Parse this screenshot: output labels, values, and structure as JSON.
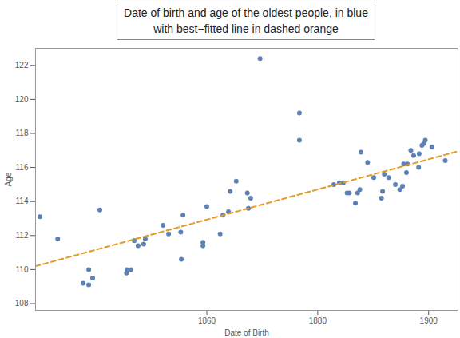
{
  "chart_data": {
    "type": "scatter",
    "title": "Date of birth and age of the oldest people, in blue\nwith best−fitted line in dashed orange",
    "x_label": "Date of Birth",
    "y_label": "Age",
    "xlim": [
      1829.1,
      1905.3
    ],
    "ylim": [
      107.6,
      123.0
    ],
    "xticks": [
      1860,
      1880,
      1900
    ],
    "yticks": [
      108,
      110,
      112,
      114,
      116,
      118,
      120,
      122
    ],
    "grid": false,
    "series": [
      {
        "type": "scatter",
        "marker": "circle",
        "color": "#5e81b5",
        "x": [
          1829.9,
          1833.1,
          1837.7,
          1838.7,
          1838.7,
          1839.4,
          1840.7,
          1845.5,
          1845.6,
          1846.3,
          1846.9,
          1847.6,
          1848.6,
          1848.9,
          1852.1,
          1853.1,
          1855.3,
          1855.4,
          1855.7,
          1859.3,
          1859.3,
          1860.0,
          1862.4,
          1862.9,
          1863.9,
          1864.2,
          1865.3,
          1867.3,
          1867.5,
          1867.9,
          1869.6,
          1876.7,
          1876.7,
          1882.9,
          1883.9,
          1884.6,
          1885.3,
          1885.7,
          1886.8,
          1887.2,
          1887.6,
          1887.8,
          1889.0,
          1890.1,
          1891.5,
          1891.7,
          1892.0,
          1892.8,
          1894.0,
          1894.8,
          1895.3,
          1895.5,
          1896.0,
          1896.2,
          1896.8,
          1897.3,
          1898.2,
          1898.3,
          1898.8,
          1899.1,
          1899.4,
          1900.6,
          1903.0
        ],
        "values": [
          113.1,
          111.8,
          109.2,
          110.0,
          109.1,
          109.5,
          113.5,
          109.8,
          110.0,
          110.0,
          111.7,
          111.4,
          111.5,
          111.8,
          112.6,
          112.1,
          112.2,
          110.6,
          113.2,
          111.6,
          111.4,
          113.7,
          112.1,
          113.2,
          113.4,
          114.6,
          115.2,
          114.5,
          113.6,
          114.2,
          122.4,
          119.2,
          117.6,
          115.0,
          115.1,
          115.1,
          114.5,
          114.5,
          113.9,
          114.5,
          114.7,
          116.9,
          116.3,
          115.4,
          114.2,
          114.6,
          115.6,
          115.4,
          115.0,
          114.7,
          114.9,
          116.2,
          115.7,
          116.2,
          117.0,
          116.7,
          116.0,
          116.8,
          117.3,
          117.4,
          117.6,
          117.2,
          116.4
        ]
      },
      {
        "type": "line",
        "line_style": "dashed",
        "color": "#e19c24",
        "x": [
          1829.1,
          1905.3
        ],
        "values": [
          110.2,
          116.95
        ]
      }
    ]
  }
}
